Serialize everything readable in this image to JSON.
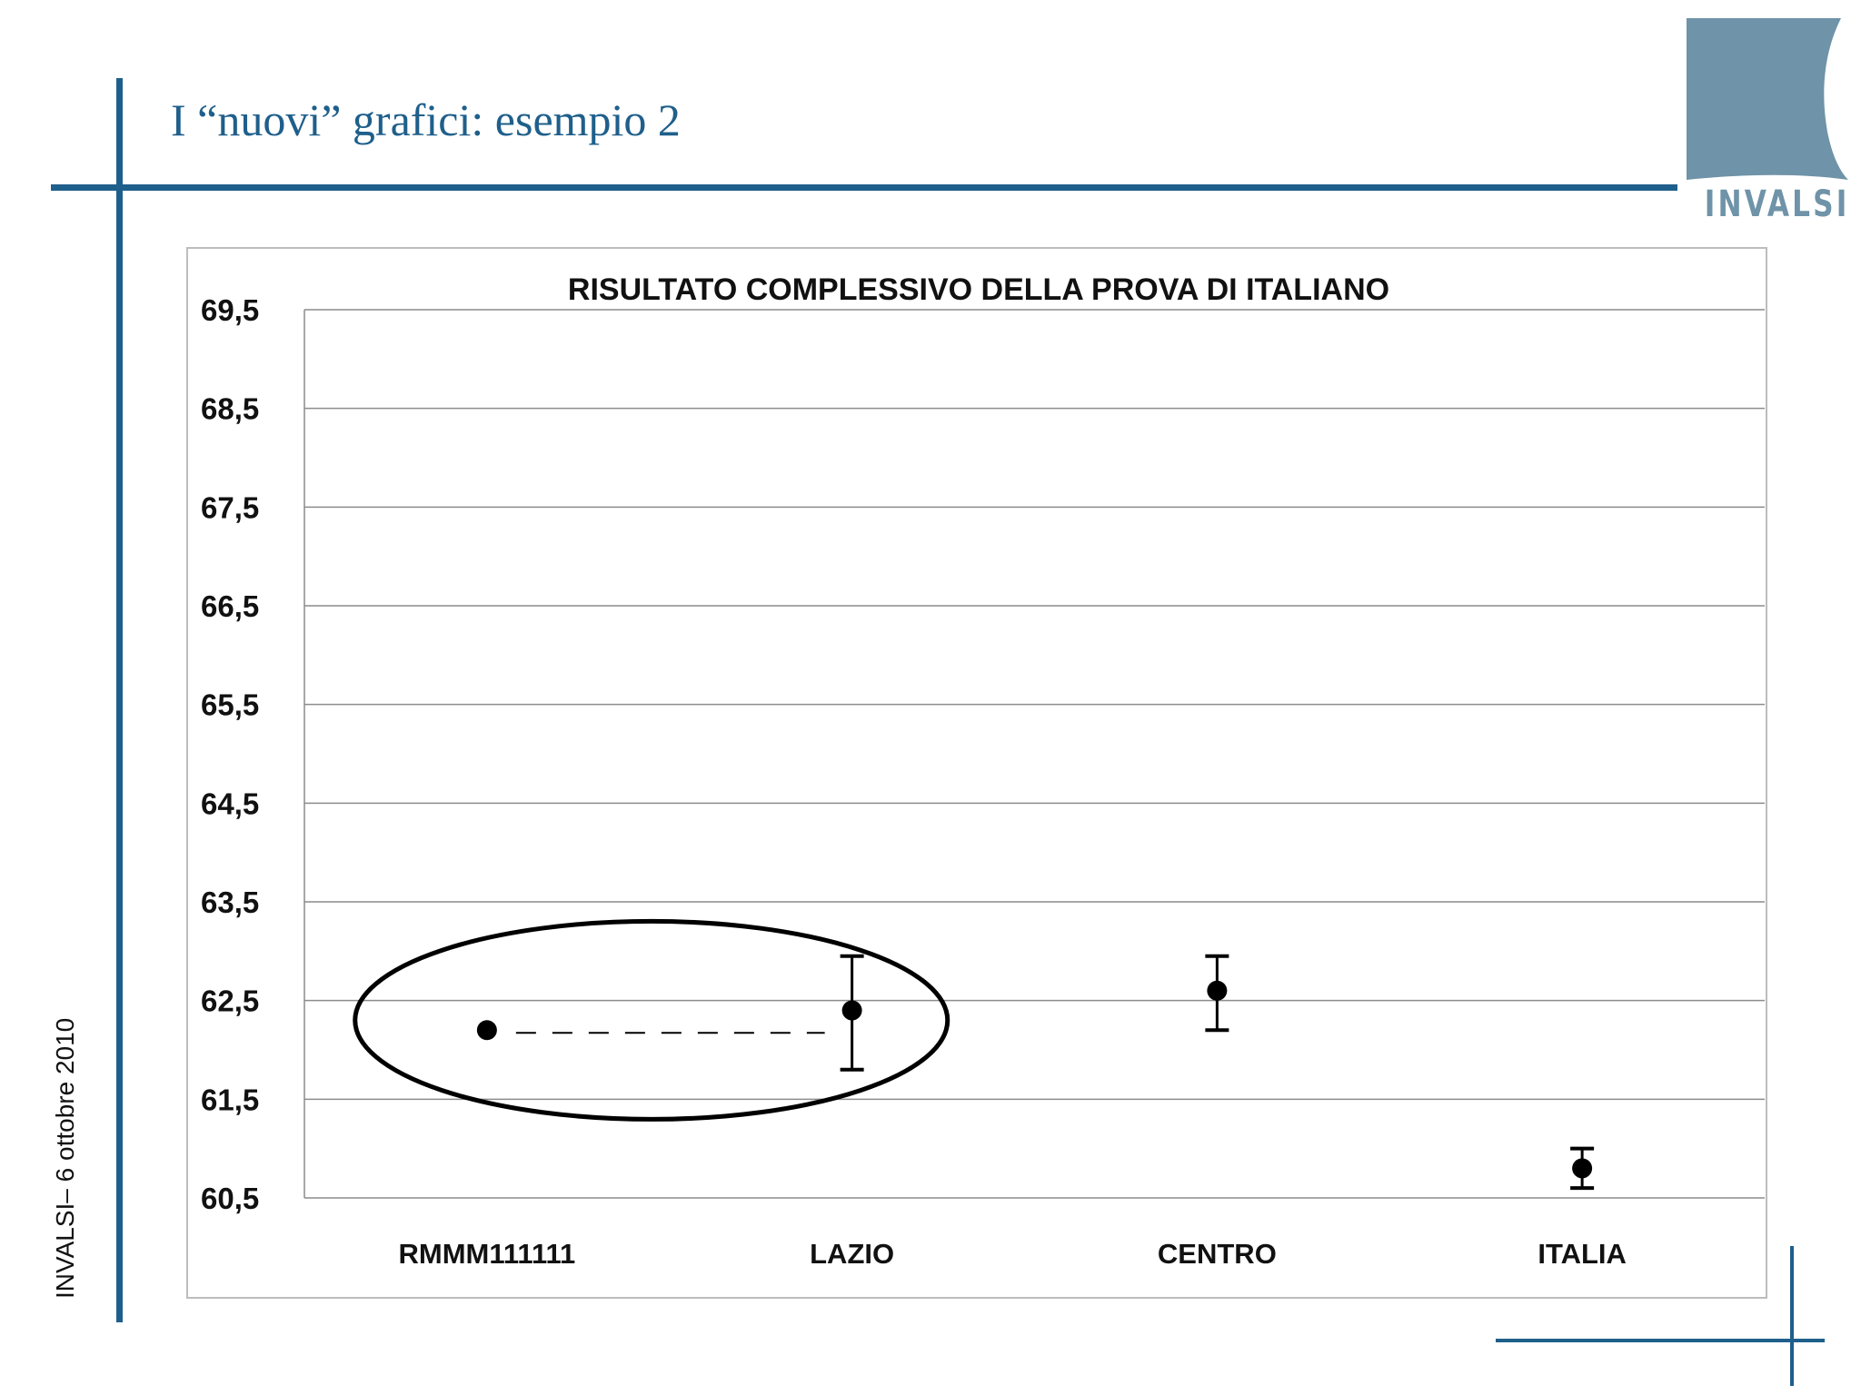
{
  "slide": {
    "title": "I “nuovi” grafici: esempio 2",
    "footer": "INVALSI–  6 ottobre 2010",
    "logo_text": "INVALSI",
    "colors": {
      "accent": "#1f5f8b",
      "logo_fill": "#6f93a8",
      "logo_text": "#6f93a8"
    }
  },
  "chart_data": {
    "type": "scatter",
    "title": "RISULTATO COMPLESSIVO DELLA PROVA DI ITALIANO",
    "categories": [
      "RMMM111111",
      "LAZIO",
      "CENTRO",
      "ITALIA"
    ],
    "y_ticks": [
      "69,5",
      "68,5",
      "67,5",
      "66,5",
      "65,5",
      "64,5",
      "63,5",
      "62,5",
      "61,5",
      "60,5"
    ],
    "ylim": [
      60.5,
      69.5
    ],
    "grid": true,
    "series": [
      {
        "values": [
          62.2,
          62.4,
          62.6,
          60.8
        ],
        "error_low": [
          null,
          61.8,
          62.2,
          60.6
        ],
        "error_high": [
          null,
          62.95,
          62.95,
          61.0
        ]
      }
    ],
    "annotations": [
      {
        "kind": "ellipse",
        "around": [
          "RMMM111111",
          "LAZIO"
        ]
      },
      {
        "kind": "dashed-line",
        "from": "RMMM111111",
        "to": "LAZIO"
      }
    ]
  }
}
